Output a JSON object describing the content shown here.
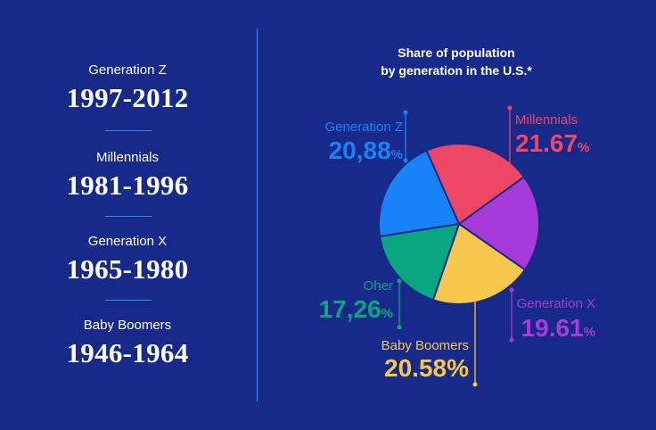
{
  "generations": [
    {
      "name": "Generation Z",
      "years": "1997-2012"
    },
    {
      "name": "Millennials",
      "years": "1981-1996"
    },
    {
      "name": "Generation X",
      "years": "1965-1980"
    },
    {
      "name": "Baby Boomers",
      "years": "1946-1964"
    }
  ],
  "chart_data": {
    "type": "pie",
    "title": [
      "Share of population",
      "by generation in the U.S.*"
    ],
    "slices": [
      {
        "label": "Generation Z",
        "value": 20.88,
        "display": "20,88",
        "suffix": "%",
        "color": "#1a82f7"
      },
      {
        "label": "Millennials",
        "value": 21.67,
        "display": "21.67",
        "suffix": "%",
        "color": "#ee4766"
      },
      {
        "label": "Generation X",
        "value": 19.61,
        "display": "19.61",
        "suffix": "%",
        "color": "#a83ad9"
      },
      {
        "label": "Baby Boomers",
        "value": 20.58,
        "display": "20.58%",
        "suffix": "",
        "color": "#f7c64c"
      },
      {
        "label": "Oher",
        "value": 17.26,
        "display": "17,26",
        "suffix": "%",
        "color": "#0aa682"
      }
    ]
  },
  "colors": {
    "background": "#172a8a",
    "divider": "#2d8ff0",
    "slice_stroke": "#172a8a"
  }
}
